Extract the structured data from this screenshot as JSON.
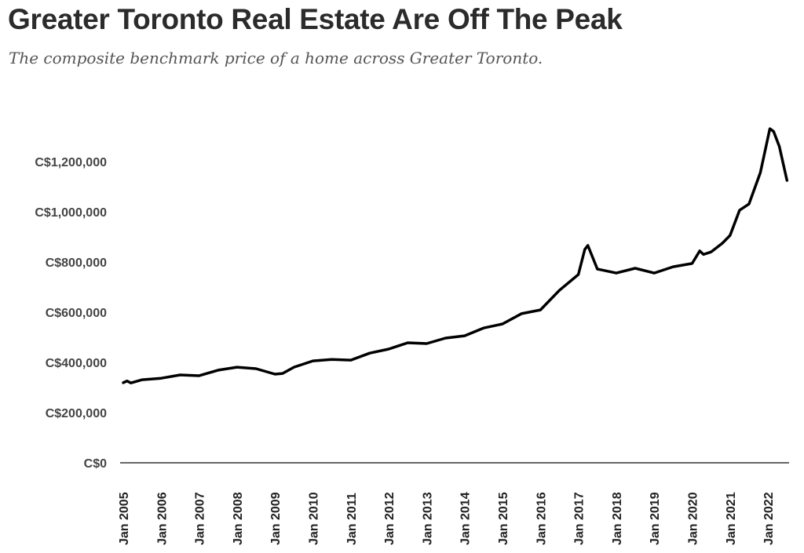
{
  "chart_data": {
    "type": "line",
    "title": "Greater Toronto Real Estate Are Off The Peak",
    "subtitle": "The composite benchmark price of a home across Greater Toronto.",
    "xlabel": "",
    "ylabel": "",
    "ylim": [
      0,
      1300000
    ],
    "yticks": [
      0,
      200000,
      400000,
      600000,
      800000,
      1000000,
      1200000
    ],
    "ytick_labels": [
      "C$0",
      "C$200,000",
      "C$400,000",
      "C$600,000",
      "C$800,000",
      "C$1,000,000",
      "C$1,200,000"
    ],
    "xticks": [
      2005,
      2006,
      2007,
      2008,
      2009,
      2010,
      2011,
      2012,
      2013,
      2014,
      2015,
      2016,
      2017,
      2018,
      2019,
      2020,
      2021,
      2022
    ],
    "xtick_labels": [
      "Jan 2005",
      "Jan 2006",
      "Jan 2007",
      "Jan 2008",
      "Jan 2009",
      "Jan 2010",
      "Jan 2011",
      "Jan 2012",
      "Jan 2013",
      "Jan 2014",
      "Jan 2015",
      "Jan 2016",
      "Jan 2017",
      "Jan 2018",
      "Jan 2019",
      "Jan 2020",
      "Jan 2021",
      "Jan 2022"
    ],
    "grid": false,
    "series": [
      {
        "name": "Composite benchmark price",
        "color": "#000000",
        "x": [
          2005,
          2005.1,
          2005.2,
          2005.5,
          2006,
          2006.5,
          2007,
          2007.5,
          2008,
          2008.5,
          2009,
          2009.2,
          2009.5,
          2010,
          2010.5,
          2011,
          2011.5,
          2012,
          2012.5,
          2013,
          2013.5,
          2014,
          2014.5,
          2015,
          2015.5,
          2016,
          2016.5,
          2017,
          2017.17,
          2017.25,
          2017.5,
          2018,
          2018.5,
          2019,
          2019.5,
          2020,
          2020.2,
          2020.3,
          2020.5,
          2020.8,
          2021,
          2021.25,
          2021.5,
          2021.8,
          2022.05,
          2022.15,
          2022.3,
          2022.5
        ],
        "values": [
          319000,
          326000,
          318000,
          331000,
          337000,
          350000,
          347000,
          369000,
          381000,
          375000,
          353000,
          356000,
          381000,
          406000,
          412000,
          409000,
          437000,
          453000,
          478000,
          475000,
          497000,
          506000,
          537000,
          553000,
          594000,
          609000,
          687000,
          750000,
          850000,
          866000,
          772000,
          756000,
          775000,
          756000,
          781000,
          794000,
          844000,
          830000,
          840000,
          875000,
          906000,
          1006000,
          1031000,
          1156000,
          1331000,
          1320000,
          1260000,
          1125000
        ]
      }
    ]
  }
}
